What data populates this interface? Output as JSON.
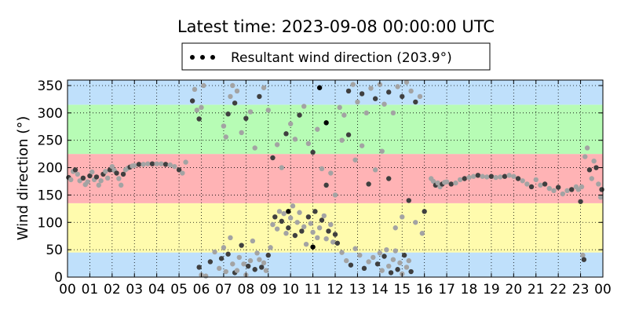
{
  "chart_data": {
    "type": "scatter",
    "title": "Latest time: 2023-09-08 00:00:00 UTC",
    "xlabel": "",
    "ylabel": "Wind direction (°)",
    "xlim": [
      0,
      24
    ],
    "ylim": [
      0,
      360
    ],
    "x_tick_labels": [
      "00",
      "01",
      "02",
      "03",
      "04",
      "05",
      "06",
      "07",
      "08",
      "09",
      "10",
      "11",
      "12",
      "13",
      "14",
      "15",
      "16",
      "17",
      "18",
      "19",
      "20",
      "21",
      "22",
      "23",
      "00"
    ],
    "y_ticks": [
      0,
      50,
      100,
      150,
      200,
      250,
      300,
      350
    ],
    "grid": true,
    "legend": {
      "placement": "top-center",
      "entries": [
        "Resultant wind direction (203.9°)"
      ]
    },
    "bands": [
      {
        "from": 0,
        "to": 45,
        "color": "#bfe0fb"
      },
      {
        "from": 45,
        "to": 135,
        "color": "#fffbad"
      },
      {
        "from": 135,
        "to": 225,
        "color": "#ffb3b5"
      },
      {
        "from": 225,
        "to": 315,
        "color": "#b7fcb5"
      },
      {
        "from": 315,
        "to": 360,
        "color": "#bfe0fb"
      }
    ],
    "point_color_dark": "#3f3f3f",
    "point_color_light": "#a3a3a3",
    "series": [
      {
        "name": "Resultant wind direction (203.9°)",
        "points": [
          [
            0.05,
            182
          ],
          [
            0.15,
            178
          ],
          [
            0.25,
            193
          ],
          [
            0.35,
            196
          ],
          [
            0.45,
            188
          ],
          [
            0.55,
            176
          ],
          [
            0.7,
            181
          ],
          [
            0.8,
            169
          ],
          [
            0.9,
            174
          ],
          [
            1.0,
            185
          ],
          [
            1.1,
            192
          ],
          [
            1.2,
            178
          ],
          [
            1.3,
            183
          ],
          [
            1.4,
            168
          ],
          [
            1.5,
            176
          ],
          [
            1.6,
            188
          ],
          [
            1.7,
            193
          ],
          [
            1.8,
            181
          ],
          [
            1.9,
            196
          ],
          [
            2.0,
            202
          ],
          [
            2.1,
            195
          ],
          [
            2.2,
            190
          ],
          [
            2.3,
            180
          ],
          [
            2.4,
            168
          ],
          [
            2.5,
            188
          ],
          [
            2.6,
            196
          ],
          [
            2.7,
            199
          ],
          [
            2.8,
            201
          ],
          [
            2.9,
            203
          ],
          [
            3.0,
            204
          ],
          [
            3.2,
            206
          ],
          [
            3.4,
            206
          ],
          [
            3.6,
            207
          ],
          [
            3.8,
            207
          ],
          [
            4.0,
            207
          ],
          [
            4.2,
            207
          ],
          [
            4.4,
            206
          ],
          [
            4.6,
            205
          ],
          [
            4.8,
            202
          ],
          [
            5.0,
            196
          ],
          [
            5.15,
            190
          ],
          [
            5.3,
            210
          ],
          [
            5.6,
            322
          ],
          [
            5.7,
            343
          ],
          [
            5.8,
            305
          ],
          [
            5.9,
            289
          ],
          [
            6.0,
            310
          ],
          [
            6.1,
            350
          ],
          [
            5.9,
            18
          ],
          [
            6.0,
            4
          ],
          [
            6.2,
            2
          ],
          [
            6.4,
            28
          ],
          [
            6.6,
            46
          ],
          [
            6.8,
            16
          ],
          [
            6.9,
            34
          ],
          [
            7.0,
            54
          ],
          [
            7.1,
            10
          ],
          [
            7.2,
            42
          ],
          [
            7.3,
            72
          ],
          [
            7.4,
            24
          ],
          [
            7.5,
            8
          ],
          [
            7.6,
            12
          ],
          [
            7.7,
            36
          ],
          [
            7.8,
            58
          ],
          [
            7.9,
            24
          ],
          [
            8.0,
            4
          ],
          [
            8.1,
            20
          ],
          [
            8.2,
            30
          ],
          [
            8.3,
            66
          ],
          [
            8.4,
            14
          ],
          [
            8.5,
            44
          ],
          [
            8.6,
            32
          ],
          [
            8.7,
            18
          ],
          [
            8.8,
            26
          ],
          [
            8.9,
            12
          ],
          [
            9.0,
            40
          ],
          [
            9.1,
            54
          ],
          [
            9.2,
            96
          ],
          [
            9.3,
            110
          ],
          [
            9.4,
            88
          ],
          [
            9.5,
            120
          ],
          [
            9.6,
            102
          ],
          [
            9.7,
            116
          ],
          [
            9.8,
            80
          ],
          [
            9.9,
            90
          ],
          [
            10.0,
            108
          ],
          [
            10.1,
            130
          ],
          [
            10.2,
            76
          ],
          [
            10.3,
            100
          ],
          [
            10.4,
            118
          ],
          [
            10.5,
            84
          ],
          [
            10.6,
            92
          ],
          [
            10.7,
            60
          ],
          [
            10.8,
            110
          ],
          [
            10.9,
            98
          ],
          [
            11.0,
            82
          ],
          [
            11.1,
            120
          ],
          [
            11.2,
            72
          ],
          [
            11.3,
            90
          ],
          [
            11.4,
            104
          ],
          [
            11.5,
            112
          ],
          [
            11.6,
            70
          ],
          [
            11.7,
            84
          ],
          [
            11.8,
            96
          ],
          [
            11.9,
            64
          ],
          [
            12.0,
            78
          ],
          [
            7.0,
            276
          ],
          [
            7.1,
            256
          ],
          [
            7.2,
            298
          ],
          [
            7.3,
            330
          ],
          [
            7.4,
            350
          ],
          [
            7.5,
            318
          ],
          [
            7.6,
            340
          ],
          [
            7.8,
            264
          ],
          [
            8.0,
            290
          ],
          [
            8.2,
            302
          ],
          [
            8.4,
            236
          ],
          [
            8.6,
            330
          ],
          [
            8.8,
            346
          ],
          [
            9.0,
            305
          ],
          [
            9.2,
            218
          ],
          [
            9.4,
            242
          ],
          [
            9.6,
            200
          ],
          [
            9.8,
            262
          ],
          [
            10.0,
            280
          ],
          [
            10.2,
            252
          ],
          [
            10.4,
            296
          ],
          [
            10.6,
            312
          ],
          [
            10.8,
            244
          ],
          [
            11.0,
            228
          ],
          [
            11.2,
            270
          ],
          [
            11.4,
            198
          ],
          [
            11.6,
            168
          ],
          [
            11.8,
            190
          ],
          [
            12.0,
            150
          ],
          [
            12.1,
            62
          ],
          [
            12.3,
            45
          ],
          [
            12.5,
            30
          ],
          [
            12.7,
            22
          ],
          [
            12.9,
            52
          ],
          [
            13.1,
            40
          ],
          [
            13.3,
            16
          ],
          [
            13.5,
            28
          ],
          [
            13.7,
            36
          ],
          [
            13.9,
            24
          ],
          [
            14.0,
            44
          ],
          [
            14.1,
            12
          ],
          [
            14.2,
            38
          ],
          [
            14.3,
            50
          ],
          [
            14.4,
            20
          ],
          [
            14.5,
            8
          ],
          [
            14.6,
            32
          ],
          [
            14.7,
            48
          ],
          [
            14.8,
            14
          ],
          [
            14.9,
            26
          ],
          [
            15.0,
            6
          ],
          [
            15.1,
            40
          ],
          [
            15.2,
            18
          ],
          [
            15.3,
            30
          ],
          [
            15.4,
            10
          ],
          [
            12.2,
            310
          ],
          [
            12.4,
            296
          ],
          [
            12.6,
            340
          ],
          [
            12.8,
            352
          ],
          [
            13.0,
            320
          ],
          [
            13.2,
            335
          ],
          [
            13.4,
            300
          ],
          [
            13.6,
            345
          ],
          [
            13.8,
            326
          ],
          [
            14.0,
            352
          ],
          [
            14.2,
            316
          ],
          [
            14.4,
            338
          ],
          [
            14.6,
            300
          ],
          [
            14.8,
            348
          ],
          [
            15.0,
            330
          ],
          [
            15.2,
            356
          ],
          [
            15.4,
            340
          ],
          [
            15.6,
            320
          ],
          [
            15.8,
            330
          ],
          [
            12.3,
            250
          ],
          [
            12.6,
            260
          ],
          [
            12.9,
            214
          ],
          [
            13.2,
            240
          ],
          [
            13.5,
            170
          ],
          [
            13.8,
            196
          ],
          [
            14.1,
            230
          ],
          [
            14.4,
            180
          ],
          [
            14.7,
            90
          ],
          [
            15.0,
            110
          ],
          [
            15.3,
            140
          ],
          [
            15.6,
            100
          ],
          [
            15.9,
            80
          ],
          [
            16.0,
            120
          ],
          [
            16.3,
            180
          ],
          [
            16.4,
            175
          ],
          [
            16.5,
            168
          ],
          [
            16.6,
            172
          ],
          [
            16.7,
            165
          ],
          [
            16.8,
            170
          ],
          [
            16.9,
            173
          ],
          [
            17.0,
            174
          ],
          [
            17.2,
            170
          ],
          [
            17.4,
            172
          ],
          [
            17.6,
            178
          ],
          [
            17.8,
            180
          ],
          [
            18.0,
            182
          ],
          [
            18.2,
            184
          ],
          [
            18.4,
            186
          ],
          [
            18.6,
            184
          ],
          [
            18.8,
            183
          ],
          [
            19.0,
            184
          ],
          [
            19.2,
            182
          ],
          [
            19.4,
            183
          ],
          [
            19.6,
            184
          ],
          [
            19.8,
            186
          ],
          [
            20.0,
            184
          ],
          [
            20.2,
            180
          ],
          [
            20.4,
            176
          ],
          [
            20.6,
            170
          ],
          [
            20.8,
            165
          ],
          [
            21.0,
            178
          ],
          [
            21.2,
            168
          ],
          [
            21.4,
            170
          ],
          [
            21.6,
            162
          ],
          [
            21.8,
            158
          ],
          [
            22.0,
            164
          ],
          [
            22.2,
            152
          ],
          [
            22.4,
            158
          ],
          [
            22.6,
            160
          ],
          [
            22.8,
            165
          ],
          [
            22.9,
            160
          ],
          [
            23.0,
            138
          ],
          [
            23.05,
            165
          ],
          [
            23.1,
            40
          ],
          [
            23.15,
            32
          ],
          [
            23.2,
            220
          ],
          [
            23.3,
            236
          ],
          [
            23.4,
            196
          ],
          [
            23.5,
            180
          ],
          [
            23.6,
            212
          ],
          [
            23.7,
            200
          ],
          [
            23.8,
            170
          ],
          [
            23.9,
            146
          ],
          [
            23.95,
            160
          ]
        ],
        "highlight_points": [
          [
            9.9,
            120
          ],
          [
            11.0,
            55
          ],
          [
            11.6,
            282
          ],
          [
            11.3,
            346
          ]
        ]
      }
    ]
  }
}
